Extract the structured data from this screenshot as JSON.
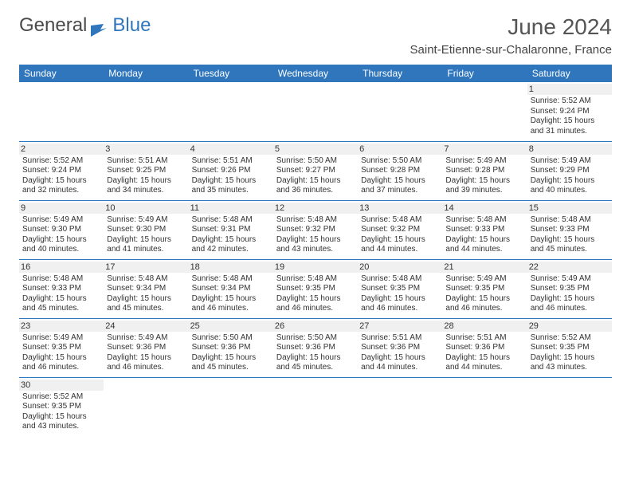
{
  "logo": {
    "text1": "General",
    "text2": "Blue",
    "flag_color": "#2f76bd"
  },
  "title": "June 2024",
  "location": "Saint-Etienne-sur-Chalaronne, France",
  "header_bg": "#2f76bd",
  "header_fg": "#ffffff",
  "row_divider": "#2f76bd",
  "spacer_bg": "#f0f0f0",
  "daynum_bg": "#f0f0f0",
  "text_color": "#333333",
  "columns": [
    "Sunday",
    "Monday",
    "Tuesday",
    "Wednesday",
    "Thursday",
    "Friday",
    "Saturday"
  ],
  "label_sunrise": "Sunrise:",
  "label_sunset": "Sunset:",
  "label_daylight": "Daylight:",
  "first_day_col": 6,
  "days": [
    {
      "n": 1,
      "sr": "5:52 AM",
      "ss": "9:24 PM",
      "dl": "15 hours and 31 minutes."
    },
    {
      "n": 2,
      "sr": "5:52 AM",
      "ss": "9:24 PM",
      "dl": "15 hours and 32 minutes."
    },
    {
      "n": 3,
      "sr": "5:51 AM",
      "ss": "9:25 PM",
      "dl": "15 hours and 34 minutes."
    },
    {
      "n": 4,
      "sr": "5:51 AM",
      "ss": "9:26 PM",
      "dl": "15 hours and 35 minutes."
    },
    {
      "n": 5,
      "sr": "5:50 AM",
      "ss": "9:27 PM",
      "dl": "15 hours and 36 minutes."
    },
    {
      "n": 6,
      "sr": "5:50 AM",
      "ss": "9:28 PM",
      "dl": "15 hours and 37 minutes."
    },
    {
      "n": 7,
      "sr": "5:49 AM",
      "ss": "9:28 PM",
      "dl": "15 hours and 39 minutes."
    },
    {
      "n": 8,
      "sr": "5:49 AM",
      "ss": "9:29 PM",
      "dl": "15 hours and 40 minutes."
    },
    {
      "n": 9,
      "sr": "5:49 AM",
      "ss": "9:30 PM",
      "dl": "15 hours and 40 minutes."
    },
    {
      "n": 10,
      "sr": "5:49 AM",
      "ss": "9:30 PM",
      "dl": "15 hours and 41 minutes."
    },
    {
      "n": 11,
      "sr": "5:48 AM",
      "ss": "9:31 PM",
      "dl": "15 hours and 42 minutes."
    },
    {
      "n": 12,
      "sr": "5:48 AM",
      "ss": "9:32 PM",
      "dl": "15 hours and 43 minutes."
    },
    {
      "n": 13,
      "sr": "5:48 AM",
      "ss": "9:32 PM",
      "dl": "15 hours and 44 minutes."
    },
    {
      "n": 14,
      "sr": "5:48 AM",
      "ss": "9:33 PM",
      "dl": "15 hours and 44 minutes."
    },
    {
      "n": 15,
      "sr": "5:48 AM",
      "ss": "9:33 PM",
      "dl": "15 hours and 45 minutes."
    },
    {
      "n": 16,
      "sr": "5:48 AM",
      "ss": "9:33 PM",
      "dl": "15 hours and 45 minutes."
    },
    {
      "n": 17,
      "sr": "5:48 AM",
      "ss": "9:34 PM",
      "dl": "15 hours and 45 minutes."
    },
    {
      "n": 18,
      "sr": "5:48 AM",
      "ss": "9:34 PM",
      "dl": "15 hours and 46 minutes."
    },
    {
      "n": 19,
      "sr": "5:48 AM",
      "ss": "9:35 PM",
      "dl": "15 hours and 46 minutes."
    },
    {
      "n": 20,
      "sr": "5:48 AM",
      "ss": "9:35 PM",
      "dl": "15 hours and 46 minutes."
    },
    {
      "n": 21,
      "sr": "5:49 AM",
      "ss": "9:35 PM",
      "dl": "15 hours and 46 minutes."
    },
    {
      "n": 22,
      "sr": "5:49 AM",
      "ss": "9:35 PM",
      "dl": "15 hours and 46 minutes."
    },
    {
      "n": 23,
      "sr": "5:49 AM",
      "ss": "9:35 PM",
      "dl": "15 hours and 46 minutes."
    },
    {
      "n": 24,
      "sr": "5:49 AM",
      "ss": "9:36 PM",
      "dl": "15 hours and 46 minutes."
    },
    {
      "n": 25,
      "sr": "5:50 AM",
      "ss": "9:36 PM",
      "dl": "15 hours and 45 minutes."
    },
    {
      "n": 26,
      "sr": "5:50 AM",
      "ss": "9:36 PM",
      "dl": "15 hours and 45 minutes."
    },
    {
      "n": 27,
      "sr": "5:51 AM",
      "ss": "9:36 PM",
      "dl": "15 hours and 44 minutes."
    },
    {
      "n": 28,
      "sr": "5:51 AM",
      "ss": "9:36 PM",
      "dl": "15 hours and 44 minutes."
    },
    {
      "n": 29,
      "sr": "5:52 AM",
      "ss": "9:35 PM",
      "dl": "15 hours and 43 minutes."
    },
    {
      "n": 30,
      "sr": "5:52 AM",
      "ss": "9:35 PM",
      "dl": "15 hours and 43 minutes."
    }
  ]
}
